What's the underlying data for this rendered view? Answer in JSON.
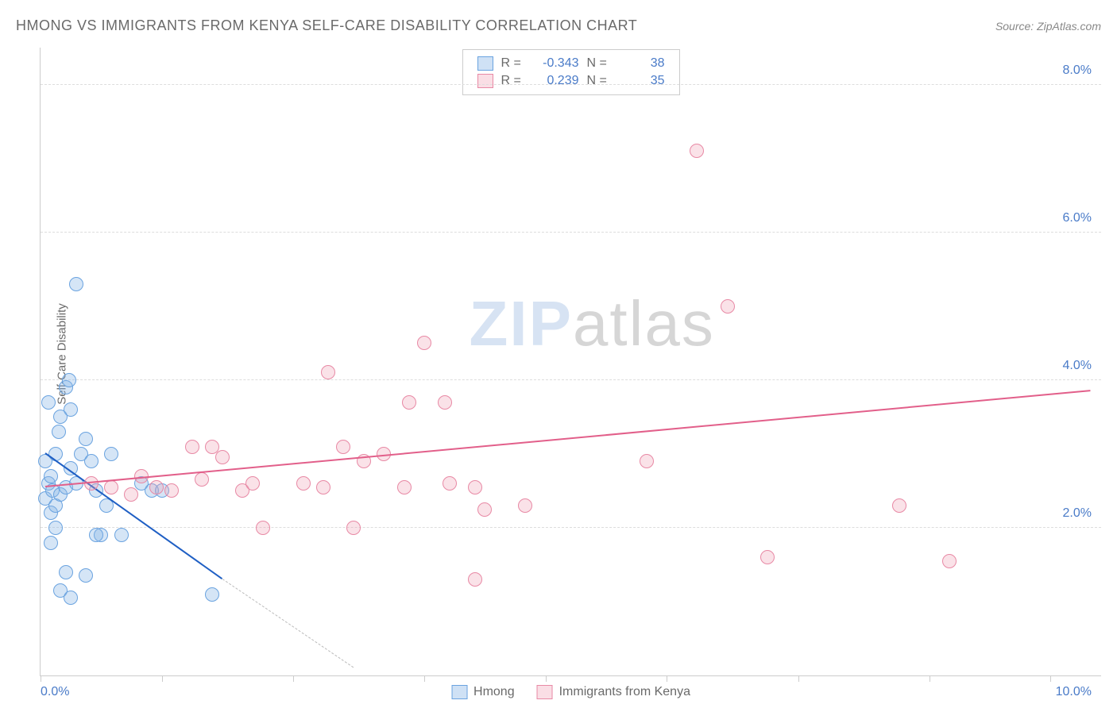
{
  "title": "HMONG VS IMMIGRANTS FROM KENYA SELF-CARE DISABILITY CORRELATION CHART",
  "source": "Source: ZipAtlas.com",
  "ylabel": "Self-Care Disability",
  "watermark": {
    "a": "ZIP",
    "b": "atlas"
  },
  "chart": {
    "type": "scatter",
    "xlim": [
      0,
      10.5
    ],
    "ylim": [
      0,
      8.5
    ],
    "xtick_positions": [
      0,
      1.2,
      2.5,
      3.8,
      5.0,
      6.2,
      7.5,
      8.8,
      10
    ],
    "xtick_labels": {
      "first": "0.0%",
      "last": "10.0%"
    },
    "ytick_positions": [
      2.0,
      4.0,
      6.0,
      8.0
    ],
    "ytick_labels": [
      "2.0%",
      "4.0%",
      "6.0%",
      "8.0%"
    ],
    "grid_color": "#dddddd",
    "background_color": "#ffffff",
    "series": [
      {
        "name": "Hmong",
        "key": "a",
        "color_fill": "rgba(135,180,230,0.35)",
        "color_stroke": "#6aa3e0",
        "trend_color": "#1f5fc4",
        "R": "-0.343",
        "N": "38",
        "trend": {
          "x1": 0.05,
          "y1": 3.0,
          "x2": 1.8,
          "y2": 1.3
        },
        "trend_dash": {
          "x1": 1.8,
          "y1": 1.3,
          "x2": 3.1,
          "y2": 0.1
        },
        "points": [
          [
            0.05,
            2.4
          ],
          [
            0.08,
            2.6
          ],
          [
            0.1,
            2.7
          ],
          [
            0.12,
            2.5
          ],
          [
            0.15,
            3.0
          ],
          [
            0.18,
            3.3
          ],
          [
            0.2,
            3.5
          ],
          [
            0.25,
            3.9
          ],
          [
            0.28,
            4.0
          ],
          [
            0.3,
            3.6
          ],
          [
            0.35,
            5.3
          ],
          [
            0.1,
            2.2
          ],
          [
            0.15,
            2.3
          ],
          [
            0.2,
            2.45
          ],
          [
            0.25,
            2.55
          ],
          [
            0.3,
            2.8
          ],
          [
            0.35,
            2.6
          ],
          [
            0.4,
            3.0
          ],
          [
            0.45,
            3.2
          ],
          [
            0.5,
            2.9
          ],
          [
            0.55,
            2.5
          ],
          [
            0.6,
            1.9
          ],
          [
            0.65,
            2.3
          ],
          [
            0.7,
            3.0
          ],
          [
            0.1,
            1.8
          ],
          [
            0.15,
            2.0
          ],
          [
            0.2,
            1.15
          ],
          [
            0.25,
            1.4
          ],
          [
            0.45,
            1.35
          ],
          [
            0.55,
            1.9
          ],
          [
            0.3,
            1.05
          ],
          [
            0.8,
            1.9
          ],
          [
            1.0,
            2.6
          ],
          [
            1.1,
            2.5
          ],
          [
            1.2,
            2.5
          ],
          [
            1.7,
            1.1
          ],
          [
            0.05,
            2.9
          ],
          [
            0.08,
            3.7
          ]
        ]
      },
      {
        "name": "Immigrants from Kenya",
        "key": "b",
        "color_fill": "rgba(240,160,180,0.3)",
        "color_stroke": "#e889a5",
        "trend_color": "#e25f8a",
        "R": "0.239",
        "N": "35",
        "trend": {
          "x1": 0.05,
          "y1": 2.55,
          "x2": 10.4,
          "y2": 3.85
        },
        "points": [
          [
            0.5,
            2.6
          ],
          [
            0.7,
            2.55
          ],
          [
            0.9,
            2.45
          ],
          [
            1.0,
            2.7
          ],
          [
            1.3,
            2.5
          ],
          [
            1.5,
            3.1
          ],
          [
            1.6,
            2.65
          ],
          [
            1.7,
            3.1
          ],
          [
            1.8,
            2.95
          ],
          [
            2.0,
            2.5
          ],
          [
            2.1,
            2.6
          ],
          [
            2.2,
            2.0
          ],
          [
            2.6,
            2.6
          ],
          [
            2.8,
            2.55
          ],
          [
            2.85,
            4.1
          ],
          [
            3.0,
            3.1
          ],
          [
            3.1,
            2.0
          ],
          [
            3.2,
            2.9
          ],
          [
            3.4,
            3.0
          ],
          [
            3.6,
            2.55
          ],
          [
            3.65,
            3.7
          ],
          [
            3.8,
            4.5
          ],
          [
            4.0,
            3.7
          ],
          [
            4.3,
            2.55
          ],
          [
            4.4,
            2.25
          ],
          [
            4.3,
            1.3
          ],
          [
            4.8,
            2.3
          ],
          [
            6.0,
            2.9
          ],
          [
            6.5,
            7.1
          ],
          [
            6.8,
            5.0
          ],
          [
            7.2,
            1.6
          ],
          [
            8.5,
            2.3
          ],
          [
            9.0,
            1.55
          ],
          [
            4.05,
            2.6
          ],
          [
            1.15,
            2.55
          ]
        ]
      }
    ]
  },
  "legend_bottom": [
    {
      "swatch": "a",
      "label": "Hmong"
    },
    {
      "swatch": "b",
      "label": "Immigrants from Kenya"
    }
  ]
}
